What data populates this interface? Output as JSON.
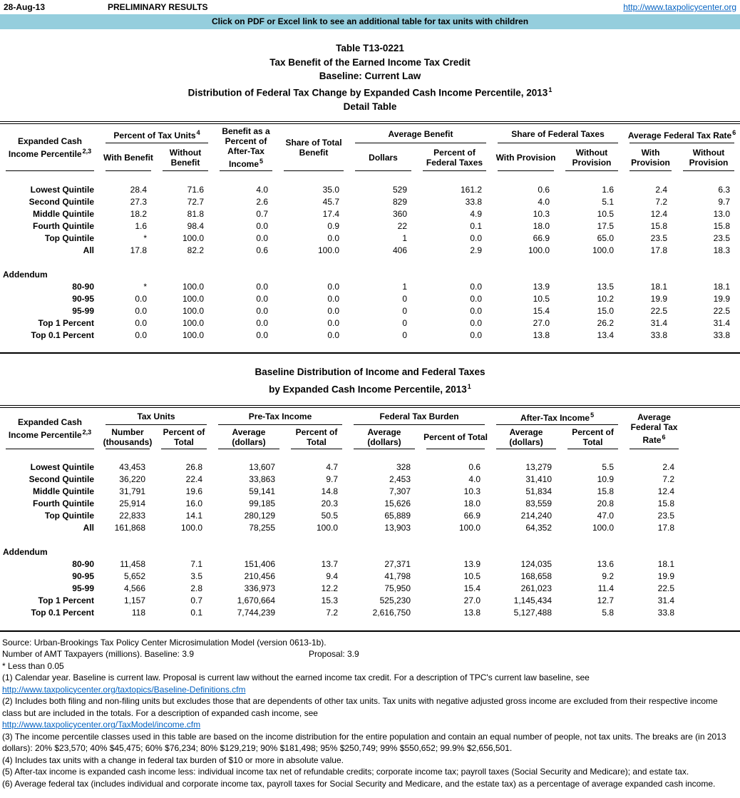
{
  "colors": {
    "banner_bg": "#95CEDD",
    "link_blue": "#0563C1"
  },
  "topbar": {
    "date": "28-Aug-13",
    "preliminary": "PRELIMINARY RESULTS",
    "site_url": "http://www.taxpolicycenter.org"
  },
  "banner": "Click on PDF or Excel link to see an additional table for tax units with children",
  "title": {
    "line1": "Table T13-0221",
    "line2": "Tax Benefit of the Earned Income Tax Credit",
    "line3": "Baseline: Current Law",
    "line4": "Distribution of Federal Tax Change by Expanded Cash Income Percentile, 2013",
    "line4_sup": "1",
    "line5": "Detail Table"
  },
  "table1": {
    "header": {
      "label": "Expanded Cash Income Percentile",
      "label_sup": "2,3",
      "group_tax_units": "Percent of Tax Units",
      "group_tax_units_sup": "4",
      "sub_with_benefit": "With Benefit",
      "sub_without_benefit": "Without Benefit",
      "benefit_pct_ati": "Benefit as a Percent of After-Tax Income",
      "benefit_pct_ati_sup": "5",
      "share_total_benefit": "Share of Total Benefit",
      "group_avg_benefit": "Average Benefit",
      "sub_dollars": "Dollars",
      "sub_pct_fed_taxes": "Percent of Federal Taxes",
      "group_share_fed": "Share of Federal Taxes",
      "sub_with_provision_a": "With Provision",
      "sub_without_provision_a": "Without Provision",
      "group_avg_rate": "Average Federal Tax Rate",
      "group_avg_rate_sup": "6",
      "sub_with_provision_b": "With Provision",
      "sub_without_provision_b": "Without Provision"
    },
    "rows": [
      {
        "label": "Lowest Quintile",
        "values": [
          "28.4",
          "71.6",
          "4.0",
          "35.0",
          "529",
          "161.2",
          "0.6",
          "1.6",
          "2.4",
          "6.3"
        ]
      },
      {
        "label": "Second Quintile",
        "values": [
          "27.3",
          "72.7",
          "2.6",
          "45.7",
          "829",
          "33.8",
          "4.0",
          "5.1",
          "7.2",
          "9.7"
        ]
      },
      {
        "label": "Middle Quintile",
        "values": [
          "18.2",
          "81.8",
          "0.7",
          "17.4",
          "360",
          "4.9",
          "10.3",
          "10.5",
          "12.4",
          "13.0"
        ]
      },
      {
        "label": "Fourth Quintile",
        "values": [
          "1.6",
          "98.4",
          "0.0",
          "0.9",
          "22",
          "0.1",
          "18.0",
          "17.5",
          "15.8",
          "15.8"
        ]
      },
      {
        "label": "Top Quintile",
        "values": [
          "*",
          "100.0",
          "0.0",
          "0.0",
          "1",
          "0.0",
          "66.9",
          "65.0",
          "23.5",
          "23.5"
        ]
      },
      {
        "label": "All",
        "values": [
          "17.8",
          "82.2",
          "0.6",
          "100.0",
          "406",
          "2.9",
          "100.0",
          "100.0",
          "17.8",
          "18.3"
        ]
      }
    ],
    "addendum_label": "Addendum",
    "addendum_rows": [
      {
        "label": "80-90",
        "values": [
          "*",
          "100.0",
          "0.0",
          "0.0",
          "1",
          "0.0",
          "13.9",
          "13.5",
          "18.1",
          "18.1"
        ]
      },
      {
        "label": "90-95",
        "values": [
          "0.0",
          "100.0",
          "0.0",
          "0.0",
          "0",
          "0.0",
          "10.5",
          "10.2",
          "19.9",
          "19.9"
        ]
      },
      {
        "label": "95-99",
        "values": [
          "0.0",
          "100.0",
          "0.0",
          "0.0",
          "0",
          "0.0",
          "15.4",
          "15.0",
          "22.5",
          "22.5"
        ]
      },
      {
        "label": "Top 1 Percent",
        "values": [
          "0.0",
          "100.0",
          "0.0",
          "0.0",
          "0",
          "0.0",
          "27.0",
          "26.2",
          "31.4",
          "31.4"
        ]
      },
      {
        "label": "Top 0.1 Percent",
        "values": [
          "0.0",
          "100.0",
          "0.0",
          "0.0",
          "0",
          "0.0",
          "13.8",
          "13.4",
          "33.8",
          "33.8"
        ]
      }
    ]
  },
  "title2": {
    "line1": "Baseline Distribution of Income and Federal Taxes",
    "line2": "by Expanded Cash Income Percentile, 2013",
    "line2_sup": "1"
  },
  "table2": {
    "header": {
      "label": "Expanded Cash Income Percentile",
      "label_sup": "2,3",
      "group_tax_units": "Tax Units",
      "sub_number": "Number (thousands)",
      "sub_pct_total_a": "Percent of Total",
      "group_pretax": "Pre-Tax Income",
      "sub_avg_dollars_a": "Average (dollars)",
      "sub_pct_total_b": "Percent of Total",
      "group_fed_burden": "Federal Tax Burden",
      "sub_avg_dollars_b": "Average (dollars)",
      "sub_pct_total_c": "Percent of Total",
      "group_aftertax": "After-Tax Income",
      "group_aftertax_sup": "5",
      "sub_avg_dollars_c": "Average (dollars)",
      "sub_pct_total_d": "Percent of Total",
      "avg_fed_rate": "Average Federal Tax Rate",
      "avg_fed_rate_sup": "6"
    },
    "rows": [
      {
        "label": "Lowest Quintile",
        "values": [
          "43,453",
          "26.8",
          "13,607",
          "4.7",
          "328",
          "0.6",
          "13,279",
          "5.5",
          "2.4"
        ]
      },
      {
        "label": "Second Quintile",
        "values": [
          "36,220",
          "22.4",
          "33,863",
          "9.7",
          "2,453",
          "4.0",
          "31,410",
          "10.9",
          "7.2"
        ]
      },
      {
        "label": "Middle Quintile",
        "values": [
          "31,791",
          "19.6",
          "59,141",
          "14.8",
          "7,307",
          "10.3",
          "51,834",
          "15.8",
          "12.4"
        ]
      },
      {
        "label": "Fourth Quintile",
        "values": [
          "25,914",
          "16.0",
          "99,185",
          "20.3",
          "15,626",
          "18.0",
          "83,559",
          "20.8",
          "15.8"
        ]
      },
      {
        "label": "Top Quintile",
        "values": [
          "22,833",
          "14.1",
          "280,129",
          "50.5",
          "65,889",
          "66.9",
          "214,240",
          "47.0",
          "23.5"
        ]
      },
      {
        "label": "All",
        "values": [
          "161,868",
          "100.0",
          "78,255",
          "100.0",
          "13,903",
          "100.0",
          "64,352",
          "100.0",
          "17.8"
        ]
      }
    ],
    "addendum_label": "Addendum",
    "addendum_rows": [
      {
        "label": "80-90",
        "values": [
          "11,458",
          "7.1",
          "151,406",
          "13.7",
          "27,371",
          "13.9",
          "124,035",
          "13.6",
          "18.1"
        ]
      },
      {
        "label": "90-95",
        "values": [
          "5,652",
          "3.5",
          "210,456",
          "9.4",
          "41,798",
          "10.5",
          "168,658",
          "9.2",
          "19.9"
        ]
      },
      {
        "label": "95-99",
        "values": [
          "4,566",
          "2.8",
          "336,973",
          "12.2",
          "75,950",
          "15.4",
          "261,023",
          "11.4",
          "22.5"
        ]
      },
      {
        "label": "Top 1 Percent",
        "values": [
          "1,157",
          "0.7",
          "1,670,664",
          "15.3",
          "525,230",
          "27.0",
          "1,145,434",
          "12.7",
          "31.4"
        ]
      },
      {
        "label": "Top 0.1 Percent",
        "values": [
          "118",
          "0.1",
          "7,744,239",
          "7.2",
          "2,616,750",
          "13.8",
          "5,127,488",
          "5.8",
          "33.8"
        ]
      }
    ]
  },
  "footnotes": {
    "source": "Source: Urban-Brookings Tax Policy Center Microsimulation Model (version 0613-1b).",
    "amt": "Number of AMT Taxpayers (millions).  Baseline: 3.9",
    "amt_proposal": "Proposal: 3.9",
    "star": "* Less than 0.05",
    "fn1": "(1) Calendar year. Baseline is current law.  Proposal is current law without the earned income tax credit.  For a description of TPC's current law baseline, see",
    "link1": "http://www.taxpolicycenter.org/taxtopics/Baseline-Definitions.cfm",
    "fn2": "(2) Includes both filing and non-filing units but excludes those that are dependents of other tax units. Tax units with negative adjusted gross income are excluded from their respective income class but are included in the totals. For a description of expanded cash income, see",
    "link2": "http://www.taxpolicycenter.org/TaxModel/income.cfm",
    "fn3": "(3) The income percentile classes used in this table are based on the income distribution for the entire population and contain an equal number of people, not tax units. The breaks are (in 2013 dollars): 20% $23,570; 40% $45,475; 60% $76,234; 80% $129,219; 90% $181,498; 95% $250,749; 99% $550,652; 99.9% $2,656,501.",
    "fn4": "(4) Includes tax units with a change in federal tax burden of $10 or more in absolute value.",
    "fn5": "(5) After-tax income is expanded cash income less: individual income tax net of refundable credits; corporate income tax; payroll taxes (Social Security and Medicare); and estate tax.",
    "fn6": "(6) Average federal tax (includes individual and corporate income tax, payroll taxes for Social Security and Medicare, and the estate tax) as a percentage of average expanded cash income."
  }
}
